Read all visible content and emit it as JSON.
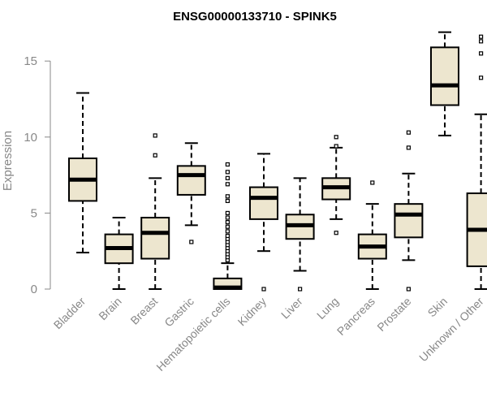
{
  "chart_data": {
    "type": "box",
    "title": "ENSG00000133710 - SPINK5",
    "xlabel": "",
    "ylabel": "Expression",
    "ylim": [
      0,
      17.2
    ],
    "yticks": [
      0,
      5,
      10,
      15
    ],
    "grid": false,
    "colors": {
      "box_fill": "#ede6cf",
      "stroke": "#000000",
      "axis_text": "#888888"
    },
    "categories": [
      "Bladder",
      "Brain",
      "Breast",
      "Gastric",
      "Hematopoietic cells",
      "Kidney",
      "Liver",
      "Lung",
      "Pancreas",
      "Prostate",
      "Skin",
      "Unknown / Other"
    ],
    "boxes": [
      {
        "min": 2.4,
        "q1": 5.8,
        "median": 7.2,
        "q3": 8.6,
        "max": 12.9,
        "outliers": []
      },
      {
        "min": 0.0,
        "q1": 1.7,
        "median": 2.7,
        "q3": 3.6,
        "max": 4.7,
        "outliers": []
      },
      {
        "min": 0.0,
        "q1": 2.0,
        "median": 3.7,
        "q3": 4.7,
        "max": 7.3,
        "outliers": [
          8.8,
          10.1
        ]
      },
      {
        "min": 4.2,
        "q1": 6.2,
        "median": 7.5,
        "q3": 8.1,
        "max": 9.6,
        "outliers": [
          3.1
        ]
      },
      {
        "min": 0.0,
        "q1": 0.0,
        "median": 0.1,
        "q3": 0.7,
        "max": 1.7,
        "outliers": [
          1.9,
          2.1,
          2.3,
          2.5,
          2.7,
          2.9,
          3.1,
          3.3,
          3.5,
          3.8,
          4.1,
          4.4,
          4.7,
          5.0,
          5.8,
          6.1,
          6.9,
          7.3,
          7.7,
          8.2
        ]
      },
      {
        "min": 2.5,
        "q1": 4.6,
        "median": 6.0,
        "q3": 6.7,
        "max": 8.9,
        "outliers": [
          0.0
        ]
      },
      {
        "min": 1.2,
        "q1": 3.3,
        "median": 4.2,
        "q3": 4.9,
        "max": 7.3,
        "outliers": [
          0.0
        ]
      },
      {
        "min": 4.6,
        "q1": 5.9,
        "median": 6.7,
        "q3": 7.3,
        "max": 9.3,
        "outliers": [
          3.7,
          9.4,
          10.0
        ]
      },
      {
        "min": 0.0,
        "q1": 2.0,
        "median": 2.8,
        "q3": 3.6,
        "max": 5.6,
        "outliers": [
          7.0
        ]
      },
      {
        "min": 1.9,
        "q1": 3.4,
        "median": 4.9,
        "q3": 5.6,
        "max": 7.6,
        "outliers": [
          0.0,
          9.3,
          10.3
        ]
      },
      {
        "min": 10.1,
        "q1": 12.1,
        "median": 13.4,
        "q3": 15.9,
        "max": 16.9,
        "outliers": []
      },
      {
        "min": 0.0,
        "q1": 1.5,
        "median": 3.9,
        "q3": 6.3,
        "max": 11.5,
        "outliers": [
          13.9,
          15.5,
          16.3,
          16.6
        ]
      }
    ]
  }
}
